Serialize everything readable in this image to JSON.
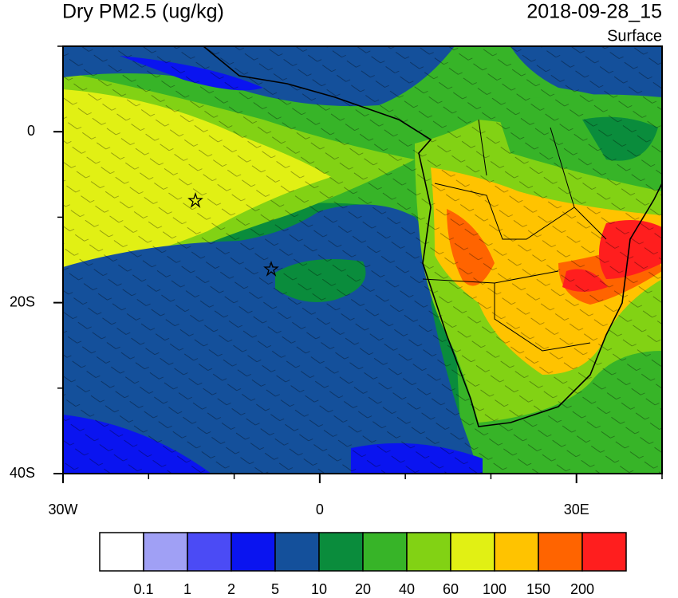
{
  "map": {
    "title": "Dry PM2.5 (ug/kg)",
    "time": "2018-09-28_15",
    "level": "Surface",
    "lon_range": [
      -30,
      40
    ],
    "lat_range": [
      -40,
      10
    ],
    "lon_ticks": [
      {
        "value": -30,
        "label": "30W"
      },
      0,
      {
        "value": 30,
        "label": "30E"
      }
    ],
    "lat_ticks": [
      0,
      {
        "value": -20,
        "label": "20S"
      },
      {
        "value": -40,
        "label": "40S"
      }
    ],
    "minor_lon_ticks": [
      -20,
      -10,
      10,
      20,
      40
    ],
    "minor_lat_ticks": [
      -30,
      -10,
      10
    ],
    "colorbar": {
      "colors": [
        "#ffffff",
        "#a0a0f5",
        "#4b4bf5",
        "#0a14f0",
        "#14509b",
        "#0a8c3c",
        "#37b428",
        "#82d214",
        "#e1f014",
        "#ffc300",
        "#ff6400",
        "#ff1e1e"
      ],
      "levels": [
        0.1,
        1,
        2,
        5,
        10,
        20,
        40,
        60,
        100,
        150,
        200
      ]
    }
  }
}
